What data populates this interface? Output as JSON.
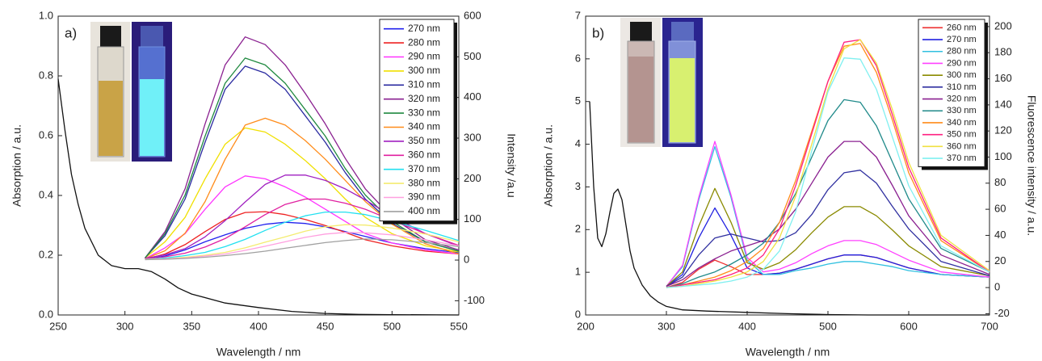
{
  "chart_data": [
    {
      "type": "line",
      "panel_label": "a)",
      "x_label": "Wavelength / nm",
      "y_label": "Absorption / a.u.",
      "y2_label": "Intensity /a.u",
      "xlim": [
        250,
        550
      ],
      "xticks": [
        250,
        300,
        350,
        400,
        450,
        500,
        550
      ],
      "ylim": [
        0,
        1.0
      ],
      "yticks": [
        {
          "value": 0,
          "label": "0.0"
        },
        0.2,
        0.4,
        0.6,
        0.8,
        {
          "value": 1,
          "label": "1.0"
        }
      ],
      "y2lim": [
        -135,
        600
      ],
      "y2ticks": [
        -100,
        0,
        100,
        200,
        300,
        400,
        500,
        600
      ],
      "legend": "upper right",
      "x": [
        315,
        330,
        345,
        360,
        375,
        390,
        405,
        420,
        435,
        450,
        465,
        480,
        500,
        525,
        550
      ],
      "series": [
        {
          "color": "#111111",
          "x": [
            250,
            255,
            260,
            265,
            270,
            280,
            290,
            300,
            310,
            320,
            330,
            340,
            350,
            375,
            400,
            425,
            450,
            475,
            500,
            550
          ],
          "values": [
            0.79,
            0.62,
            0.47,
            0.37,
            0.29,
            0.2,
            0.165,
            0.155,
            0.155,
            0.145,
            0.12,
            0.09,
            0.07,
            0.04,
            0.025,
            0.012,
            0.005,
            0.002,
            0.001,
            0
          ]
        },
        {
          "name": "270 nm",
          "color": "#2222ee",
          "axis": "y2",
          "values": [
            2,
            10,
            25,
            45,
            62,
            78,
            88,
            93,
            90,
            82,
            70,
            58,
            42,
            28,
            18
          ]
        },
        {
          "name": "280 nm",
          "color": "#ee2222",
          "axis": "y2",
          "values": [
            2,
            15,
            38,
            70,
            100,
            117,
            119,
            112,
            100,
            85,
            68,
            50,
            35,
            22,
            15
          ]
        },
        {
          "name": "290 nm",
          "color": "#ff33ff",
          "axis": "y2",
          "values": [
            3,
            30,
            65,
            125,
            180,
            207,
            200,
            180,
            155,
            125,
            95,
            65,
            42,
            25,
            15
          ]
        },
        {
          "name": "300 nm",
          "color": "#f0e000",
          "axis": "y2",
          "values": [
            5,
            45,
            105,
            200,
            285,
            325,
            315,
            285,
            245,
            200,
            150,
            105,
            65,
            35,
            20
          ]
        },
        {
          "name": "310 nm",
          "color": "#2a2aa0",
          "axis": "y2",
          "values": [
            5,
            60,
            150,
            290,
            420,
            477,
            460,
            420,
            355,
            290,
            215,
            150,
            90,
            45,
            22
          ]
        },
        {
          "name": "320 nm",
          "color": "#8a2090",
          "axis": "y2",
          "values": [
            5,
            70,
            175,
            335,
            480,
            549,
            530,
            480,
            410,
            335,
            250,
            175,
            105,
            50,
            25
          ]
        },
        {
          "name": "330 nm",
          "color": "#208a40",
          "axis": "y2",
          "values": [
            5,
            65,
            160,
            305,
            435,
            497,
            480,
            435,
            370,
            305,
            225,
            160,
            95,
            45,
            22
          ]
        },
        {
          "name": "340 nm",
          "color": "#ff8c1a",
          "axis": "y2",
          "values": [
            3,
            23,
            66,
            144,
            248,
            332,
            349,
            332,
            294,
            248,
            196,
            144,
            88,
            40,
            15
          ]
        },
        {
          "name": "350 nm",
          "color": "#a020c0",
          "axis": "y2",
          "values": [
            4,
            13,
            28,
            57,
            97,
            143,
            186,
            209,
            209,
            196,
            175,
            148,
            108,
            65,
            34
          ]
        },
        {
          "name": "360 nm",
          "color": "#e020a0",
          "axis": "y2",
          "values": [
            3,
            8,
            17,
            32,
            53,
            82,
            112,
            137,
            150,
            150,
            140,
            125,
            98,
            65,
            36
          ]
        },
        {
          "name": "370 nm",
          "color": "#22e0f0",
          "axis": "y2",
          "values": [
            2,
            5,
            11,
            19,
            33,
            51,
            73,
            93,
            109,
            118,
            118,
            112,
            96,
            73,
            48
          ]
        },
        {
          "name": "380 nm",
          "color": "#f4ec70",
          "axis": "y2",
          "values": [
            2,
            3,
            7,
            12,
            19,
            30,
            44,
            57,
            71,
            82,
            87,
            86,
            79,
            64,
            45
          ]
        },
        {
          "name": "390 nm",
          "color": "#ffa0e0",
          "axis": "y2",
          "values": [
            1,
            3,
            5,
            10,
            15,
            24,
            34,
            45,
            56,
            64,
            68,
            67,
            62,
            50,
            35
          ]
        },
        {
          "name": "400 nm",
          "color": "#a0a0a0",
          "axis": "y2",
          "values": [
            1,
            2,
            4,
            7,
            11,
            16,
            22,
            29,
            36,
            43,
            48,
            52,
            50,
            43,
            33
          ]
        }
      ]
    },
    {
      "type": "line",
      "panel_label": "b)",
      "x_label": "Wavelength / nm",
      "y_label": "Absorption / a.u.",
      "y2_label": "Fluorescence intensity / a.u.",
      "xlim": [
        200,
        700
      ],
      "xticks": [
        200,
        300,
        400,
        500,
        600,
        700
      ],
      "ylim": [
        0,
        7
      ],
      "yticks": [
        0,
        1,
        2,
        3,
        4,
        5,
        6,
        7
      ],
      "y2lim": [
        -21,
        208
      ],
      "y2ticks": [
        -20,
        0,
        20,
        40,
        60,
        80,
        100,
        120,
        140,
        160,
        180,
        200
      ],
      "legend": "upper right",
      "x": [
        300,
        320,
        340,
        360,
        380,
        400,
        420,
        440,
        460,
        480,
        500,
        520,
        540,
        560,
        580,
        600,
        640,
        700
      ],
      "series": [
        {
          "color": "#111111",
          "x": [
            205,
            210,
            215,
            220,
            225,
            230,
            235,
            240,
            245,
            250,
            255,
            260,
            270,
            280,
            290,
            300,
            320,
            350,
            400,
            450,
            500,
            550,
            700
          ],
          "values": [
            5.0,
            3.0,
            1.8,
            1.6,
            1.9,
            2.4,
            2.85,
            2.95,
            2.7,
            2.1,
            1.5,
            1.1,
            0.7,
            0.45,
            0.3,
            0.2,
            0.12,
            0.09,
            0.06,
            0.03,
            0.01,
            0,
            0
          ]
        },
        {
          "name": "260 nm",
          "color": "#ee3030",
          "axis": "y2",
          "values": [
            0,
            4,
            14,
            21,
            16,
            10,
            10,
            11,
            14,
            18,
            22,
            25,
            25,
            23,
            19,
            15,
            10,
            8
          ]
        },
        {
          "name": "270 nm",
          "color": "#2020e0",
          "axis": "y2",
          "values": [
            1,
            10,
            38,
            61,
            40,
            15,
            10,
            11,
            14,
            18,
            22,
            25,
            25,
            23,
            19,
            15,
            10,
            8
          ]
        },
        {
          "name": "280 nm",
          "color": "#30c0e0",
          "axis": "y2",
          "values": [
            1,
            16,
            67,
            108,
            69,
            21,
            10,
            10,
            13,
            15,
            18,
            20,
            20,
            18,
            16,
            13,
            10,
            8
          ]
        },
        {
          "name": "290 nm",
          "color": "#ff40ff",
          "axis": "y2",
          "values": [
            1,
            17,
            69,
            112,
            71,
            23,
            12,
            14,
            19,
            26,
            32,
            36,
            36,
            33,
            27,
            21,
            12,
            8
          ]
        },
        {
          "name": "300 nm",
          "color": "#8a8a00",
          "axis": "y2",
          "values": [
            1,
            12,
            47,
            76,
            50,
            19,
            14,
            19,
            29,
            42,
            54,
            62,
            62,
            55,
            44,
            32,
            16,
            9
          ]
        },
        {
          "name": "310 nm",
          "color": "#3030a0",
          "axis": "y2",
          "values": [
            1,
            8,
            25,
            38,
            41,
            38,
            35,
            36,
            42,
            56,
            75,
            88,
            90,
            80,
            62,
            45,
            20,
            9
          ]
        },
        {
          "name": "320 nm",
          "color": "#8a2090",
          "axis": "y2",
          "values": [
            1,
            6,
            15,
            22,
            28,
            32,
            36,
            45,
            60,
            80,
            100,
            112,
            112,
            100,
            78,
            55,
            25,
            10
          ]
        },
        {
          "name": "330 nm",
          "color": "#208a8a",
          "axis": "y2",
          "values": [
            0,
            3,
            8,
            12,
            18,
            25,
            34,
            50,
            72,
            100,
            128,
            144,
            142,
            124,
            96,
            68,
            30,
            12
          ]
        },
        {
          "name": "340 nm",
          "color": "#ff8c1a",
          "axis": "y2",
          "values": [
            0,
            2,
            5,
            8,
            13,
            20,
            30,
            50,
            82,
            120,
            158,
            185,
            187,
            165,
            128,
            88,
            36,
            12
          ]
        },
        {
          "name": "350 nm",
          "color": "#ff2080",
          "axis": "y2",
          "values": [
            0,
            2,
            4,
            6,
            10,
            15,
            25,
            45,
            78,
            118,
            158,
            188,
            190,
            170,
            132,
            92,
            38,
            12
          ]
        },
        {
          "name": "360 nm",
          "color": "#f0e040",
          "axis": "y2",
          "values": [
            0,
            1,
            3,
            5,
            8,
            12,
            20,
            38,
            70,
            110,
            152,
            183,
            190,
            172,
            136,
            96,
            40,
            13
          ]
        },
        {
          "name": "370 nm",
          "color": "#80f0f0",
          "axis": "y2",
          "values": [
            0,
            1,
            2,
            3,
            5,
            8,
            14,
            28,
            58,
            105,
            150,
            176,
            175,
            152,
            115,
            78,
            32,
            12
          ]
        }
      ]
    }
  ]
}
